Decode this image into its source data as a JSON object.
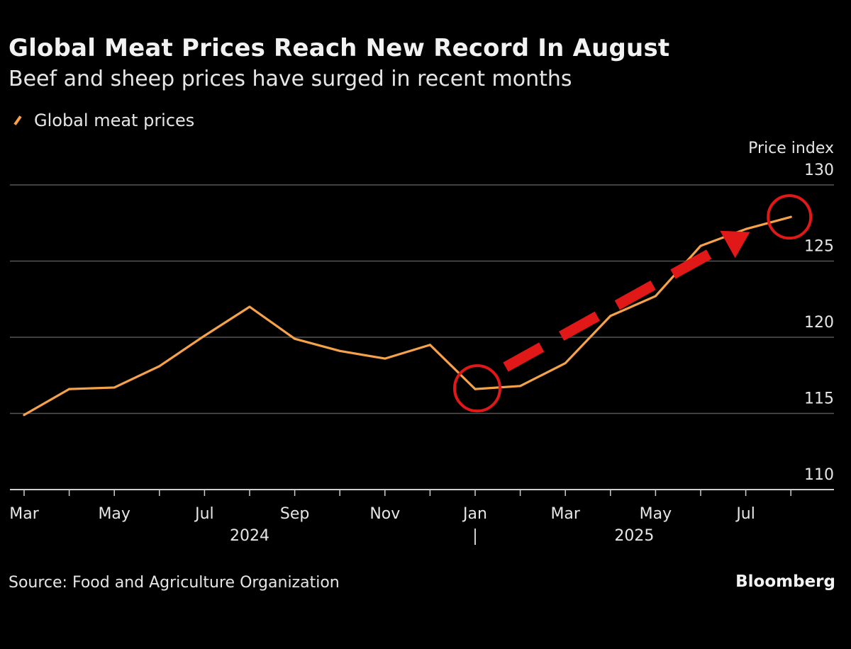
{
  "header": {
    "title": "Global Meat Prices Reach New Record In August",
    "subtitle": "Beef and sheep prices have surged in recent months"
  },
  "footer": {
    "source": "Source: Food and Agriculture Organization",
    "brand": "Bloomberg"
  },
  "colors": {
    "background": "#000000",
    "line": "#f5a24a",
    "grid": "#555555",
    "annotation": "#e01818"
  },
  "chart_data": {
    "type": "line",
    "title": "Global Meat Prices Reach New Record In August",
    "subtitle": "Beef and sheep prices have surged in recent months",
    "ylabel": "Price index",
    "ylim": [
      110,
      130
    ],
    "yticks": [
      110,
      115,
      120,
      125,
      130
    ],
    "grid": true,
    "legend_position": "top-left",
    "x": [
      "2024-03",
      "2024-04",
      "2024-05",
      "2024-06",
      "2024-07",
      "2024-08",
      "2024-09",
      "2024-10",
      "2024-11",
      "2024-12",
      "2025-01",
      "2025-02",
      "2025-03",
      "2025-04",
      "2025-05",
      "2025-06",
      "2025-07",
      "2025-08"
    ],
    "xtick_labels": [
      "Mar",
      "May",
      "Jul",
      "Sep",
      "Nov",
      "Jan",
      "Mar",
      "May",
      "Jul"
    ],
    "xtick_label_months": [
      "2024-03",
      "2024-05",
      "2024-07",
      "2024-09",
      "2024-11",
      "2025-01",
      "2025-03",
      "2025-05",
      "2025-07"
    ],
    "year_labels": [
      "2024",
      "2025"
    ],
    "series": [
      {
        "name": "Global meat prices",
        "values": [
          114.9,
          116.6,
          116.7,
          118.1,
          120.1,
          122.0,
          119.9,
          119.1,
          118.6,
          119.5,
          116.6,
          116.8,
          118.3,
          121.4,
          122.7,
          126.0,
          127.1,
          127.9
        ]
      }
    ],
    "annotations": [
      {
        "type": "circle",
        "at": "2025-01"
      },
      {
        "type": "circle",
        "at": "2025-08"
      },
      {
        "type": "dashed-arrow",
        "from": "2025-01",
        "to": "2025-08"
      }
    ]
  }
}
